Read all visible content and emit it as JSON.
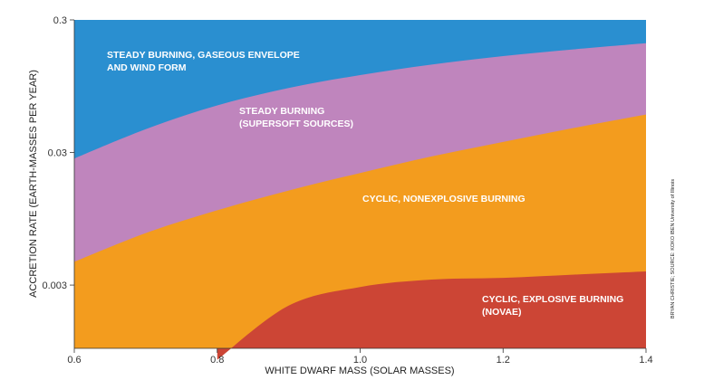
{
  "chart_data": {
    "type": "area",
    "x": [
      0.6,
      0.7,
      0.8,
      0.9,
      1.0,
      1.1,
      1.2,
      1.3,
      1.4
    ],
    "xlim": [
      0.6,
      1.4
    ],
    "ylim": [
      0.001,
      0.3
    ],
    "yscale": "log",
    "xticks": [
      "0.6",
      "0.8",
      "1.0",
      "1.2",
      "1.4"
    ],
    "yticks": [
      {
        "value": 0.3,
        "label": "0.3"
      },
      {
        "value": 0.03,
        "label": "0.03"
      },
      {
        "value": 0.003,
        "label": "0.003"
      }
    ],
    "xlabel": "WHITE DWARF MASS (SOLAR MASSES)",
    "ylabel": "ACCRETION RATE (EARTH-MASSES PER YEAR)",
    "boundaries": [
      {
        "name": "steady burning upper limit",
        "values": [
          0.027,
          0.045,
          0.068,
          0.092,
          0.115,
          0.138,
          0.16,
          0.18,
          0.2
        ]
      },
      {
        "name": "steady burning lower limit",
        "values": [
          0.0045,
          0.0074,
          0.011,
          0.0155,
          0.021,
          0.028,
          0.036,
          0.046,
          0.058
        ]
      },
      {
        "name": "nova boundary",
        "values": [
          null,
          null,
          0.00082,
          0.0021,
          0.0029,
          0.0033,
          0.0034,
          0.0036,
          0.0038
        ]
      }
    ],
    "regions": [
      {
        "lines": [
          "STEADY BURNING, GASEOUS ENVELOPE",
          "AND WIND FORM"
        ],
        "color": "#2a8fd0"
      },
      {
        "lines": [
          "STEADY BURNING",
          "(SUPERSOFT SOURCES)"
        ],
        "color": "#bf85bd"
      },
      {
        "lines": [
          "CYCLIC, NONEXPLOSIVE BURNING"
        ],
        "color": "#f39c1e"
      },
      {
        "lines": [
          "CYCLIC, EXPLOSIVE BURNING",
          "(NOVAE)"
        ],
        "color": "#cc4535"
      }
    ],
    "credit": "BRYAN CHRISTIE; SOURCE: KOKO IBEN University of Illinois"
  }
}
